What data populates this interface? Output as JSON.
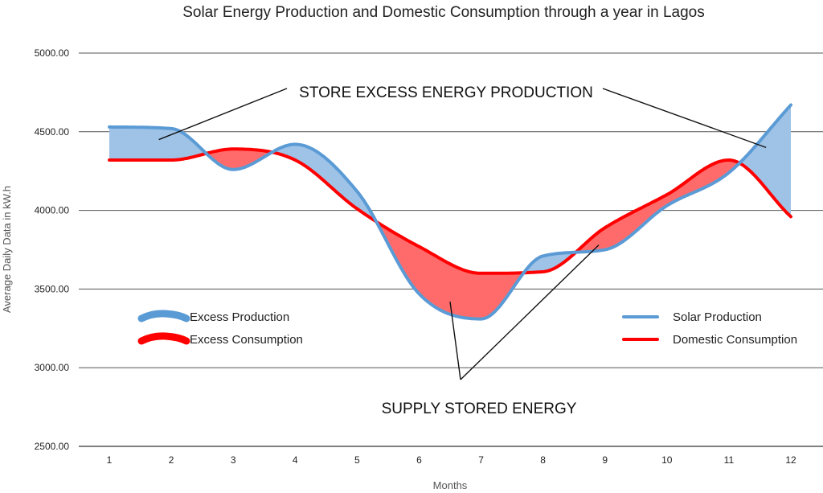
{
  "chart_data": {
    "type": "line",
    "title": "Solar Energy Production and Domestic Consumption through a year in Lagos",
    "xlabel": "Months",
    "ylabel": "Average Daily Data in kW.h",
    "x": [
      1,
      2,
      3,
      4,
      5,
      6,
      7,
      8,
      9,
      10,
      11,
      12
    ],
    "xtick_labels": [
      "1",
      "2",
      "3",
      "4",
      "5",
      "6",
      "7",
      "8",
      "9",
      "10",
      "11",
      "12"
    ],
    "ylim": [
      2500,
      5000
    ],
    "ytick_labels": [
      "2500.00",
      "3000.00",
      "3500.00",
      "4000.00",
      "4500.00",
      "5000.00"
    ],
    "yticks": [
      2500,
      3000,
      3500,
      4000,
      4500,
      5000
    ],
    "grid": true,
    "series": [
      {
        "name": "Solar Production",
        "color": "#5b9bd5",
        "values": [
          4530,
          4520,
          4260,
          4420,
          4120,
          3470,
          3310,
          3710,
          3750,
          4030,
          4240,
          4670
        ]
      },
      {
        "name": "Domestic Consumption",
        "color": "#ff0000",
        "values": [
          4320,
          4320,
          4390,
          4320,
          4010,
          3770,
          3600,
          3610,
          3890,
          4100,
          4320,
          3960
        ]
      }
    ],
    "legend": {
      "left": [
        {
          "label": "Excess Production",
          "color": "#5b9bd5"
        },
        {
          "label": "Excess Consumption",
          "color": "#ff0000"
        }
      ],
      "right": [
        {
          "label": "Solar Production",
          "color": "#5b9bd5"
        },
        {
          "label": "Domestic Consumption",
          "color": "#ff0000"
        }
      ]
    },
    "fill_colors": {
      "excess_production": "#9fc3e7",
      "excess_consumption": "#ff6b6b"
    },
    "annotations": [
      {
        "text": "STORE EXCESS ENERGY PRODUCTION",
        "targets": [
          {
            "x": 1.8,
            "y": 4450
          },
          {
            "x": 11.6,
            "y": 4400
          }
        ]
      },
      {
        "text": "SUPPLY STORED ENERGY",
        "targets": [
          {
            "x": 6.5,
            "y": 3420
          },
          {
            "x": 8.9,
            "y": 3780
          }
        ]
      }
    ]
  }
}
